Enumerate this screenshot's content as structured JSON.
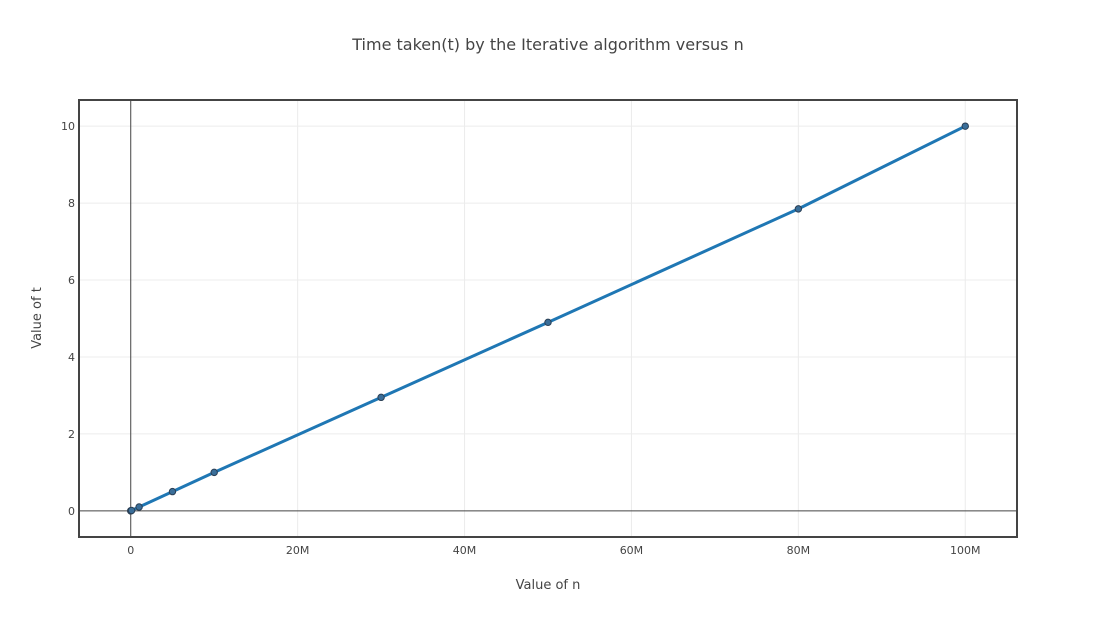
{
  "colors": {
    "line": "#1f77b4",
    "marker_fill": "#3a6e99",
    "marker_stroke": "#2a3f55",
    "grid": "#ececec",
    "frame": "#444444",
    "zeroline": "#444444",
    "text": "#444444"
  },
  "chart_data": {
    "type": "line",
    "title": "Time taken(t) by the Iterative algorithm versus n",
    "xlabel": "Value of n",
    "ylabel": "Value of t",
    "xlim": [
      -6200000,
      106200000
    ],
    "ylim": [
      -0.68,
      10.68
    ],
    "grid": true,
    "x_ticks": [
      {
        "value": 0,
        "label": "0"
      },
      {
        "value": 20000000,
        "label": "20M"
      },
      {
        "value": 40000000,
        "label": "40M"
      },
      {
        "value": 60000000,
        "label": "60M"
      },
      {
        "value": 80000000,
        "label": "80M"
      },
      {
        "value": 100000000,
        "label": "100M"
      }
    ],
    "y_ticks": [
      {
        "value": 0,
        "label": "0"
      },
      {
        "value": 2,
        "label": "2"
      },
      {
        "value": 4,
        "label": "4"
      },
      {
        "value": 6,
        "label": "6"
      },
      {
        "value": 8,
        "label": "8"
      },
      {
        "value": 10,
        "label": "10"
      }
    ],
    "series": [
      {
        "x": [
          0,
          10000,
          100000,
          1000000,
          5000000,
          10000000,
          30000000,
          50000000,
          80000000,
          100000000
        ],
        "y": [
          0,
          0.001,
          0.01,
          0.1,
          0.5,
          1.0,
          2.95,
          4.9,
          7.85,
          10.0
        ]
      }
    ]
  }
}
